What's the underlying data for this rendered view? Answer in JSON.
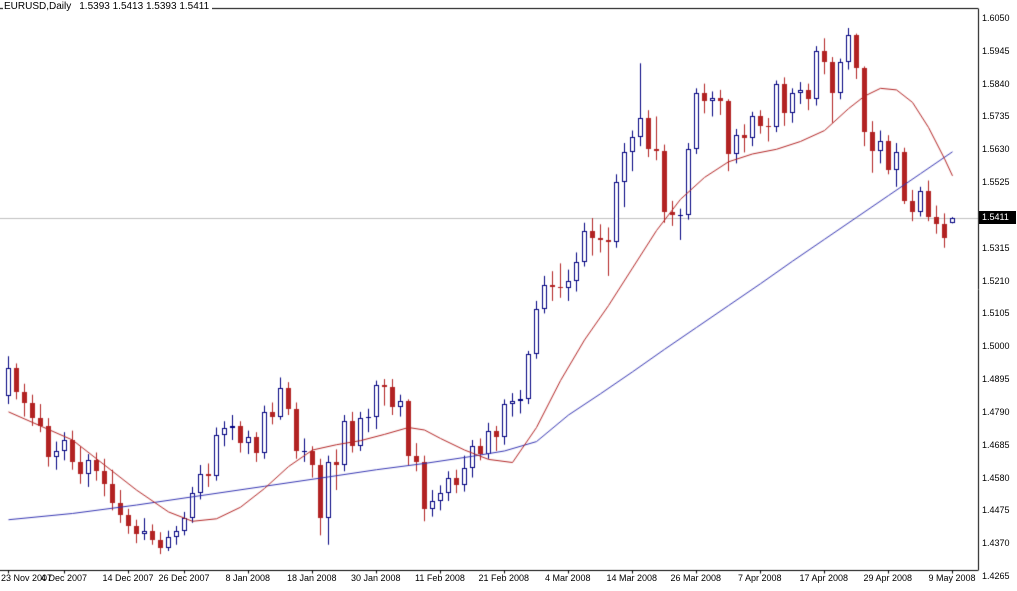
{
  "header": {
    "symbol_period": "EURUSD,Daily",
    "quote": "1.5393 1.5413 1.5393 1.5411"
  },
  "chart_data": {
    "type": "candlestick",
    "title": "EURUSD,Daily",
    "symbol": "EURUSD",
    "timeframe": "Daily",
    "current_bar": {
      "open": "1.5393",
      "high": "1.5413",
      "low": "1.5393",
      "close": "1.5411"
    },
    "last_price": 1.5411,
    "last_price_label": "1.5411",
    "y_axis": {
      "max": 1.605,
      "min": 1.4265,
      "step": 0.0105,
      "labels": [
        "1.6050",
        "1.5945",
        "1.5840",
        "1.5735",
        "1.5630",
        "1.5525",
        "1.5420",
        "1.5315",
        "1.5210",
        "1.5105",
        "1.5000",
        "1.4895",
        "1.4790",
        "1.4685",
        "1.4580",
        "1.4475",
        "1.4370",
        "1.4265"
      ]
    },
    "x_ticks": [
      {
        "label": "23 Nov 2007",
        "index": 0
      },
      {
        "label": "4 Dec 2007",
        "index": 7
      },
      {
        "label": "14 Dec 2007",
        "index": 15
      },
      {
        "label": "26 Dec 2007",
        "index": 22
      },
      {
        "label": "8 Jan 2008",
        "index": 30
      },
      {
        "label": "18 Jan 2008",
        "index": 38
      },
      {
        "label": "30 Jan 2008",
        "index": 46
      },
      {
        "label": "11 Feb 2008",
        "index": 54
      },
      {
        "label": "21 Feb 2008",
        "index": 62
      },
      {
        "label": "4 Mar 2008",
        "index": 70
      },
      {
        "label": "14 Mar 2008",
        "index": 78
      },
      {
        "label": "26 Mar 2008",
        "index": 86
      },
      {
        "label": "7 Apr 2008",
        "index": 94
      },
      {
        "label": "17 Apr 2008",
        "index": 102
      },
      {
        "label": "29 Apr 2008",
        "index": 110
      },
      {
        "label": "9 May 2008",
        "index": 118
      }
    ],
    "candles": [
      [
        "2007.11.23",
        1.484,
        1.4968,
        1.4815,
        1.493
      ],
      [
        "2007.11.26",
        1.493,
        1.4945,
        1.483,
        1.4855
      ],
      [
        "2007.11.27",
        1.4855,
        1.488,
        1.4775,
        1.482
      ],
      [
        "2007.11.28",
        1.482,
        1.4845,
        1.4745,
        1.477
      ],
      [
        "2007.11.29",
        1.477,
        1.4815,
        1.4725,
        1.4745
      ],
      [
        "2007.11.30",
        1.4745,
        1.477,
        1.4615,
        1.4645
      ],
      [
        "2007.12.03",
        1.4645,
        1.4695,
        1.4605,
        1.4665
      ],
      [
        "2007.12.04",
        1.4665,
        1.4725,
        1.4635,
        1.47
      ],
      [
        "2007.12.05",
        1.47,
        1.473,
        1.4605,
        1.463
      ],
      [
        "2007.12.06",
        1.463,
        1.468,
        1.456,
        1.459
      ],
      [
        "2007.12.07",
        1.459,
        1.4655,
        1.455,
        1.4635
      ],
      [
        "2007.12.10",
        1.4635,
        1.466,
        1.457,
        1.46
      ],
      [
        "2007.12.11",
        1.46,
        1.464,
        1.452,
        1.456
      ],
      [
        "2007.12.12",
        1.456,
        1.4605,
        1.4475,
        1.45
      ],
      [
        "2007.12.13",
        1.45,
        1.454,
        1.4435,
        1.446
      ],
      [
        "2007.12.14",
        1.446,
        1.448,
        1.44,
        1.4425
      ],
      [
        "2007.12.17",
        1.4425,
        1.4445,
        1.437,
        1.44
      ],
      [
        "2007.12.18",
        1.44,
        1.445,
        1.438,
        1.441
      ],
      [
        "2007.12.19",
        1.441,
        1.443,
        1.4365,
        1.438
      ],
      [
        "2007.12.20",
        1.438,
        1.4405,
        1.4335,
        1.4355
      ],
      [
        "2007.12.21",
        1.4355,
        1.441,
        1.4345,
        1.439
      ],
      [
        "2007.12.24",
        1.439,
        1.4425,
        1.4365,
        1.441
      ],
      [
        "2007.12.26",
        1.441,
        1.447,
        1.4395,
        1.445
      ],
      [
        "2007.12.27",
        1.445,
        1.455,
        1.4435,
        1.453
      ],
      [
        "2007.12.28",
        1.453,
        1.462,
        1.451,
        1.459
      ],
      [
        "2007.12.31",
        1.459,
        1.4625,
        1.455,
        1.4585
      ],
      [
        "2008.01.02",
        1.4585,
        1.474,
        1.457,
        1.4715
      ],
      [
        "2008.01.03",
        1.4715,
        1.476,
        1.468,
        1.474
      ],
      [
        "2008.01.04",
        1.474,
        1.478,
        1.47,
        1.4745
      ],
      [
        "2008.01.07",
        1.4745,
        1.476,
        1.466,
        1.469
      ],
      [
        "2008.01.08",
        1.469,
        1.473,
        1.4655,
        1.471
      ],
      [
        "2008.01.09",
        1.471,
        1.4725,
        1.463,
        1.466
      ],
      [
        "2008.01.10",
        1.466,
        1.481,
        1.464,
        1.479
      ],
      [
        "2008.01.11",
        1.479,
        1.482,
        1.475,
        1.4775
      ],
      [
        "2008.01.14",
        1.4775,
        1.49,
        1.4765,
        1.4865
      ],
      [
        "2008.01.15",
        1.4865,
        1.4885,
        1.478,
        1.48
      ],
      [
        "2008.01.16",
        1.48,
        1.482,
        1.464,
        1.4665
      ],
      [
        "2008.01.17",
        1.4665,
        1.4705,
        1.463,
        1.4665
      ],
      [
        "2008.01.18",
        1.4665,
        1.468,
        1.458,
        1.462
      ],
      [
        "2008.01.21",
        1.462,
        1.464,
        1.4395,
        1.445
      ],
      [
        "2008.01.22",
        1.445,
        1.465,
        1.4365,
        1.463
      ],
      [
        "2008.01.23",
        1.463,
        1.467,
        1.454,
        1.462
      ],
      [
        "2008.01.24",
        1.462,
        1.478,
        1.46,
        1.476
      ],
      [
        "2008.01.25",
        1.476,
        1.479,
        1.466,
        1.468
      ],
      [
        "2008.01.28",
        1.468,
        1.479,
        1.4665,
        1.477
      ],
      [
        "2008.01.29",
        1.477,
        1.48,
        1.4725,
        1.4775
      ],
      [
        "2008.01.30",
        1.4775,
        1.489,
        1.4735,
        1.4875
      ],
      [
        "2008.01.31",
        1.4875,
        1.4895,
        1.481,
        1.487
      ],
      [
        "2008.02.01",
        1.487,
        1.4895,
        1.478,
        1.4805
      ],
      [
        "2008.02.04",
        1.4805,
        1.4845,
        1.4775,
        1.4825
      ],
      [
        "2008.02.05",
        1.4825,
        1.483,
        1.462,
        1.465
      ],
      [
        "2008.02.06",
        1.465,
        1.469,
        1.46,
        1.463
      ],
      [
        "2008.02.07",
        1.463,
        1.465,
        1.444,
        1.448
      ],
      [
        "2008.02.08",
        1.448,
        1.454,
        1.4455,
        1.4505
      ],
      [
        "2008.02.11",
        1.4505,
        1.4555,
        1.4475,
        1.453
      ],
      [
        "2008.02.12",
        1.453,
        1.46,
        1.4505,
        1.458
      ],
      [
        "2008.02.13",
        1.458,
        1.4605,
        1.453,
        1.4555
      ],
      [
        "2008.02.14",
        1.4555,
        1.465,
        1.4535,
        1.461
      ],
      [
        "2008.02.15",
        1.461,
        1.47,
        1.458,
        1.468
      ],
      [
        "2008.02.18",
        1.468,
        1.4705,
        1.4635,
        1.4655
      ],
      [
        "2008.02.19",
        1.4655,
        1.4755,
        1.464,
        1.473
      ],
      [
        "2008.02.20",
        1.473,
        1.4745,
        1.4665,
        1.471
      ],
      [
        "2008.02.21",
        1.471,
        1.483,
        1.4685,
        1.4815
      ],
      [
        "2008.02.22",
        1.4815,
        1.485,
        1.4775,
        1.4825
      ],
      [
        "2008.02.25",
        1.4825,
        1.486,
        1.4785,
        1.483
      ],
      [
        "2008.02.26",
        1.483,
        1.4985,
        1.4815,
        1.4975
      ],
      [
        "2008.02.27",
        1.4975,
        1.5145,
        1.496,
        1.512
      ],
      [
        "2008.02.28",
        1.512,
        1.5225,
        1.5105,
        1.5195
      ],
      [
        "2008.02.29",
        1.5195,
        1.524,
        1.5145,
        1.519
      ],
      [
        "2008.03.03",
        1.519,
        1.5265,
        1.5155,
        1.5185
      ],
      [
        "2008.03.04",
        1.5185,
        1.5245,
        1.5145,
        1.521
      ],
      [
        "2008.03.05",
        1.521,
        1.53,
        1.5175,
        1.527
      ],
      [
        "2008.03.06",
        1.527,
        1.5395,
        1.5255,
        1.537
      ],
      [
        "2008.03.07",
        1.537,
        1.541,
        1.529,
        1.5345
      ],
      [
        "2008.03.10",
        1.5345,
        1.539,
        1.53,
        1.534
      ],
      [
        "2008.03.11",
        1.534,
        1.538,
        1.5225,
        1.5335
      ],
      [
        "2008.03.12",
        1.5335,
        1.555,
        1.5315,
        1.5525
      ],
      [
        "2008.03.13",
        1.5525,
        1.565,
        1.5445,
        1.562
      ],
      [
        "2008.03.14",
        1.562,
        1.569,
        1.556,
        1.567
      ],
      [
        "2008.03.17",
        1.567,
        1.5905,
        1.564,
        1.573
      ],
      [
        "2008.03.18",
        1.573,
        1.5755,
        1.5605,
        1.563
      ],
      [
        "2008.03.19",
        1.563,
        1.5735,
        1.5595,
        1.5625
      ],
      [
        "2008.03.20",
        1.5625,
        1.5645,
        1.5395,
        1.543
      ],
      [
        "2008.03.21",
        1.543,
        1.5465,
        1.5385,
        1.542
      ],
      [
        "2008.03.24",
        1.542,
        1.544,
        1.534,
        1.542
      ],
      [
        "2008.03.25",
        1.542,
        1.565,
        1.5405,
        1.563
      ],
      [
        "2008.03.26",
        1.563,
        1.5825,
        1.5615,
        1.581
      ],
      [
        "2008.03.27",
        1.581,
        1.584,
        1.5745,
        1.5785
      ],
      [
        "2008.03.28",
        1.5785,
        1.5815,
        1.5735,
        1.5795
      ],
      [
        "2008.03.31",
        1.5795,
        1.582,
        1.574,
        1.5785
      ],
      [
        "2008.04.01",
        1.5785,
        1.579,
        1.556,
        1.5615
      ],
      [
        "2008.04.02",
        1.5615,
        1.5695,
        1.5585,
        1.5675
      ],
      [
        "2008.04.03",
        1.5675,
        1.571,
        1.562,
        1.5665
      ],
      [
        "2008.04.04",
        1.5665,
        1.575,
        1.564,
        1.5735
      ],
      [
        "2008.04.07",
        1.5735,
        1.5755,
        1.568,
        1.5705
      ],
      [
        "2008.04.08",
        1.5705,
        1.573,
        1.5655,
        1.57
      ],
      [
        "2008.04.09",
        1.57,
        1.585,
        1.5685,
        1.584
      ],
      [
        "2008.04.10",
        1.584,
        1.586,
        1.5705,
        1.5745
      ],
      [
        "2008.04.11",
        1.5745,
        1.5825,
        1.5715,
        1.581
      ],
      [
        "2008.04.14",
        1.581,
        1.5845,
        1.5775,
        1.582
      ],
      [
        "2008.04.15",
        1.582,
        1.584,
        1.5755,
        1.579
      ],
      [
        "2008.04.16",
        1.579,
        1.596,
        1.577,
        1.5945
      ],
      [
        "2008.04.17",
        1.5945,
        1.5985,
        1.587,
        1.591
      ],
      [
        "2008.04.18",
        1.591,
        1.5925,
        1.5715,
        1.581
      ],
      [
        "2008.04.21",
        1.581,
        1.592,
        1.579,
        1.591
      ],
      [
        "2008.04.22",
        1.591,
        1.6018,
        1.5885,
        1.5995
      ],
      [
        "2008.04.23",
        1.5995,
        1.6,
        1.5855,
        1.589
      ],
      [
        "2008.04.24",
        1.589,
        1.5895,
        1.564,
        1.5685
      ],
      [
        "2008.04.25",
        1.5685,
        1.572,
        1.5555,
        1.5625
      ],
      [
        "2008.04.28",
        1.5625,
        1.569,
        1.5585,
        1.5655
      ],
      [
        "2008.04.29",
        1.5655,
        1.5675,
        1.555,
        1.5565
      ],
      [
        "2008.04.30",
        1.5565,
        1.565,
        1.551,
        1.562
      ],
      [
        "2008.05.01",
        1.562,
        1.5635,
        1.5455,
        1.5465
      ],
      [
        "2008.05.02",
        1.5465,
        1.55,
        1.54,
        1.543
      ],
      [
        "2008.05.05",
        1.543,
        1.551,
        1.5415,
        1.5495
      ],
      [
        "2008.05.06",
        1.5495,
        1.553,
        1.54,
        1.5415
      ],
      [
        "2008.05.07",
        1.5415,
        1.545,
        1.536,
        1.539
      ],
      [
        "2008.05.08",
        1.539,
        1.5425,
        1.5315,
        1.5345
      ],
      [
        "2008.05.09",
        1.5393,
        1.5413,
        1.5393,
        1.5411
      ]
    ],
    "ma_fast": {
      "name": "moving-average-fast",
      "color": "#B22222",
      "points": [
        [
          0,
          1.479
        ],
        [
          4,
          1.4745
        ],
        [
          8,
          1.47
        ],
        [
          12,
          1.462
        ],
        [
          16,
          1.454
        ],
        [
          20,
          1.447
        ],
        [
          23,
          1.444
        ],
        [
          26,
          1.4448
        ],
        [
          29,
          1.4485
        ],
        [
          32,
          1.4545
        ],
        [
          35,
          1.4615
        ],
        [
          38,
          1.4668
        ],
        [
          41,
          1.4685
        ],
        [
          44,
          1.4698
        ],
        [
          47,
          1.4718
        ],
        [
          50,
          1.474
        ],
        [
          52,
          1.4732
        ],
        [
          54,
          1.4705
        ],
        [
          57,
          1.4668
        ],
        [
          60,
          1.4638
        ],
        [
          63,
          1.4628
        ],
        [
          66,
          1.474
        ],
        [
          69,
          1.489
        ],
        [
          72,
          1.502
        ],
        [
          75,
          1.513
        ],
        [
          78,
          1.525
        ],
        [
          81,
          1.537
        ],
        [
          84,
          1.547
        ],
        [
          87,
          1.554
        ],
        [
          90,
          1.559
        ],
        [
          93,
          1.5615
        ],
        [
          96,
          1.563
        ],
        [
          99,
          1.5655
        ],
        [
          102,
          1.569
        ],
        [
          105,
          1.576
        ],
        [
          107,
          1.58
        ],
        [
          109,
          1.5825
        ],
        [
          111,
          1.582
        ],
        [
          113,
          1.578
        ],
        [
          115,
          1.57
        ],
        [
          117,
          1.56
        ],
        [
          118,
          1.5545
        ]
      ]
    },
    "ma_slow": {
      "name": "moving-average-slow",
      "color": "#3333B2",
      "points": [
        [
          0,
          1.4445
        ],
        [
          8,
          1.4465
        ],
        [
          16,
          1.4492
        ],
        [
          24,
          1.4522
        ],
        [
          32,
          1.4552
        ],
        [
          40,
          1.4582
        ],
        [
          46,
          1.4605
        ],
        [
          52,
          1.4625
        ],
        [
          58,
          1.4648
        ],
        [
          62,
          1.4665
        ],
        [
          66,
          1.4695
        ],
        [
          70,
          1.478
        ],
        [
          74,
          1.4848
        ],
        [
          78,
          1.4918
        ],
        [
          82,
          1.499
        ],
        [
          86,
          1.506
        ],
        [
          90,
          1.513
        ],
        [
          94,
          1.52
        ],
        [
          98,
          1.5272
        ],
        [
          102,
          1.5342
        ],
        [
          106,
          1.5412
        ],
        [
          110,
          1.5482
        ],
        [
          114,
          1.5552
        ],
        [
          118,
          1.5622
        ]
      ]
    },
    "colors": {
      "bg": "#FFFFFF",
      "axis": "#000000",
      "up_fill": "#FFFFFF",
      "up_stroke": "#000080",
      "down_fill": "#B22222",
      "bid_line": "#C0C0C0",
      "tag_bg": "#000000",
      "tag_fg": "#FFFFFF"
    },
    "grid": "off",
    "legend": "none"
  }
}
